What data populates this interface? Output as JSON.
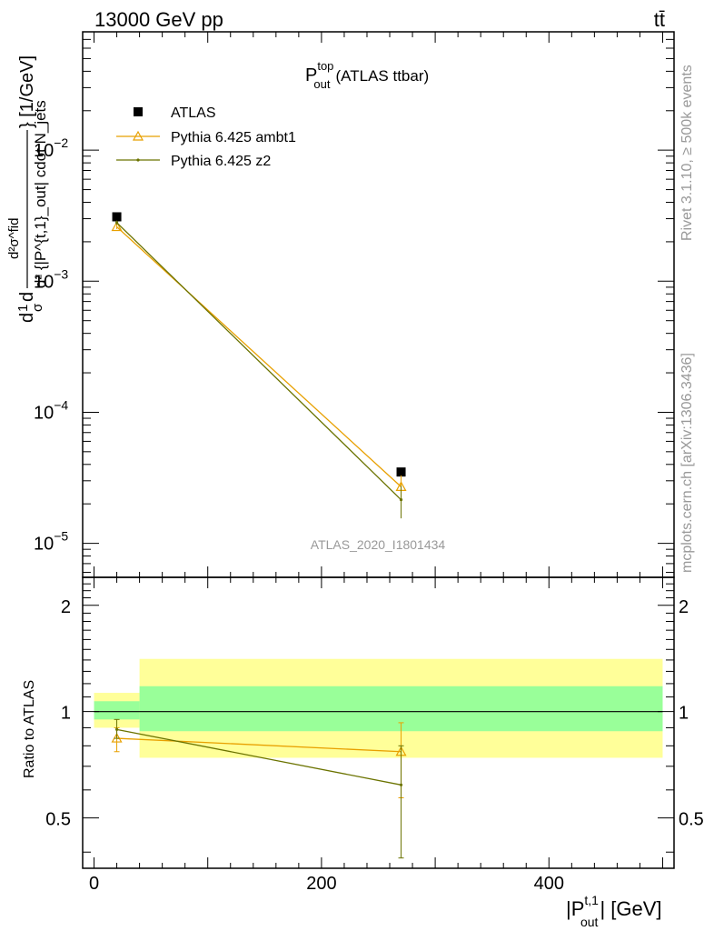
{
  "header": {
    "energy_label": "13000 GeV pp",
    "process_label": "tt̄"
  },
  "side_labels": {
    "rivet": "Rivet 3.1.10, ≥ 500k events",
    "mcplots": "mcplots.cern.ch [arXiv:1306.3436]"
  },
  "plot_title": {
    "main": "P",
    "sup": "top",
    "sub": "out",
    "suffix": "(ATLAS ttbar)"
  },
  "watermark": "ATLAS_2020_I1801434",
  "legend": {
    "placement": "top-left",
    "entries": [
      {
        "label": "ATLAS",
        "color": "#000000",
        "marker": "filled-square"
      },
      {
        "label": "Pythia 6.425 ambt1",
        "color": "#e8a000",
        "marker": "open-triangle"
      },
      {
        "label": "Pythia 6.425 z2",
        "color": "#6b7300",
        "marker": "small-dot"
      }
    ]
  },
  "main_ylabel": {
    "part1": "d",
    "frac_num": "1",
    "frac_den": "σ",
    "part2": "d",
    "numerator": "d²σ^fid",
    "denominator": "d² {|P^{t,1}_out| cdot N_jets",
    "units": "} [1/GeV]"
  },
  "ratio_ylabel": "Ratio to ATLAS",
  "xlabel": {
    "main": "|P",
    "sup": "t,1",
    "sub": "out",
    "suffix": "| [GeV]"
  },
  "chart_data": {
    "type": "scatter",
    "x_scale": "linear",
    "xlim": [
      -10,
      510
    ],
    "main_panel": {
      "y_scale": "log",
      "ylim": [
        5.5e-06,
        0.08
      ],
      "y_tick_labels": [
        {
          "value": 1e-05,
          "base": "10",
          "exp": "−5"
        },
        {
          "value": 0.0001,
          "base": "10",
          "exp": "−4"
        },
        {
          "value": 0.001,
          "base": "10",
          "exp": "−3"
        },
        {
          "value": 0.01,
          "base": "10",
          "exp": "−2"
        }
      ],
      "series": [
        {
          "name": "ATLAS",
          "color": "#000000",
          "marker": "filled-square",
          "x": [
            20,
            270
          ],
          "y": [
            0.0031,
            3.5e-05
          ],
          "xerr": [
            [
              0,
              40
            ],
            [
              40,
              500
            ]
          ]
        },
        {
          "name": "Pythia 6.425 ambt1",
          "color": "#e8a000",
          "marker": "open-triangle",
          "x": [
            20,
            270
          ],
          "y": [
            0.0026,
            2.7e-05
          ],
          "yerr": [
            0.0001,
            6e-06
          ]
        },
        {
          "name": "Pythia 6.425 z2",
          "color": "#6b7300",
          "marker": "small-dot",
          "x": [
            20,
            270
          ],
          "y": [
            0.0028,
            2.15e-05
          ],
          "yerr": [
            0.0001,
            6e-06
          ]
        }
      ]
    },
    "ratio_panel": {
      "y_scale": "log",
      "ylim": [
        0.36,
        2.4
      ],
      "y_tick_labels": [
        {
          "value": 0.5,
          "label": "0.5"
        },
        {
          "value": 1,
          "label": "1"
        },
        {
          "value": 2,
          "label": "2"
        }
      ],
      "x_tick_labels": [
        {
          "value": 0,
          "label": "0"
        },
        {
          "value": 200,
          "label": "200"
        },
        {
          "value": 400,
          "label": "400"
        }
      ],
      "bands": [
        {
          "x0": 0,
          "x1": 40,
          "stat_lo": 0.95,
          "stat_hi": 1.07,
          "tot_lo": 0.9,
          "tot_hi": 1.13
        },
        {
          "x0": 40,
          "x1": 500,
          "stat_lo": 0.88,
          "stat_hi": 1.18,
          "tot_lo": 0.74,
          "tot_hi": 1.41
        }
      ],
      "band_colors": {
        "stat": "#99ff99",
        "total": "#ffff99"
      },
      "series": [
        {
          "name": "Pythia 6.425 ambt1",
          "color": "#e8a000",
          "marker": "open-triangle",
          "x": [
            20,
            270
          ],
          "y": [
            0.84,
            0.77
          ],
          "ylo": [
            0.77,
            0.57
          ],
          "yhi": [
            0.9,
            0.93
          ]
        },
        {
          "name": "Pythia 6.425 z2",
          "color": "#6b7300",
          "marker": "small-dot",
          "x": [
            20,
            270
          ],
          "y": [
            0.89,
            0.62
          ],
          "ylo": [
            0.84,
            0.385
          ],
          "yhi": [
            0.95,
            0.8
          ]
        }
      ]
    }
  }
}
